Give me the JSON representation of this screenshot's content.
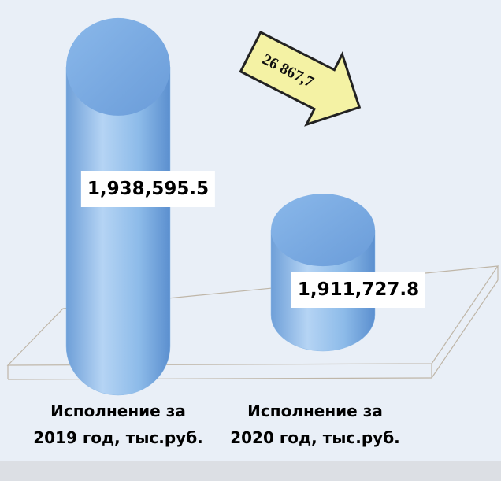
{
  "chart_data": {
    "type": "bar",
    "categories": [
      "Исполнение за 2019 год, тыс.руб.",
      "Исполнение за 2020 год, тыс.руб."
    ],
    "values": [
      1938595.5,
      1911727.8
    ],
    "value_labels": [
      "1,938,595.5",
      "1,911,727.8"
    ],
    "annotation": "26 867,7",
    "color": "#8fbbe8",
    "ylim": [
      1900000,
      1940000
    ]
  }
}
